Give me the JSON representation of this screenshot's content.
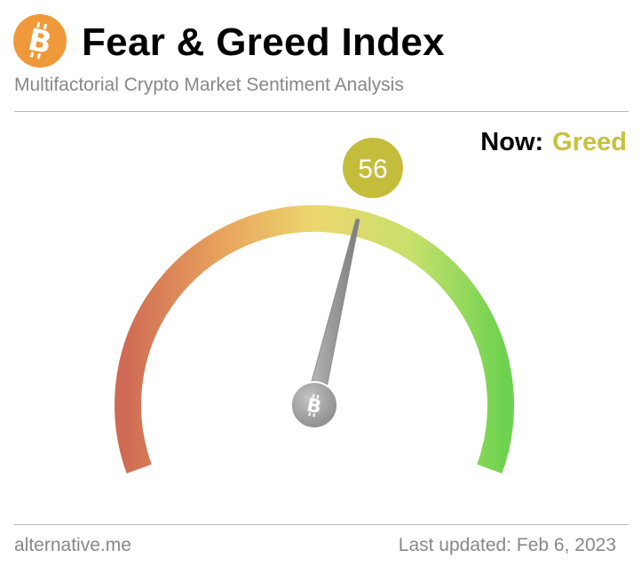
{
  "header": {
    "title": "Fear & Greed Index",
    "subtitle": "Multifactorial Crypto Market Sentiment Analysis",
    "logo_icon": "bitcoin-icon",
    "logo_color": "#f0993a"
  },
  "status": {
    "now_label": "Now:",
    "classification": "Greed",
    "classification_color": "#c6c23e"
  },
  "gauge": {
    "value": 56,
    "value_text": "56",
    "min": 0,
    "max": 100,
    "badge_color": "#c4bd3c",
    "hub_icon": "bitcoin-icon",
    "colors": [
      "#cf6b55",
      "#e8a25c",
      "#ecd76e",
      "#c8e06c",
      "#6cd24f"
    ]
  },
  "footer": {
    "source": "alternative.me",
    "last_updated_label": "Last updated:",
    "last_updated_date": "Feb 6, 2023"
  }
}
